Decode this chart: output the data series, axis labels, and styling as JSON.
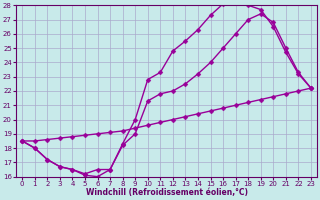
{
  "xlabel": "Windchill (Refroidissement éolien,°C)",
  "bg_color": "#c8eaea",
  "grid_color": "#aaaacc",
  "line_color": "#990099",
  "marker": "D",
  "markersize": 2.5,
  "linewidth": 1.0,
  "xlim": [
    -0.5,
    23.5
  ],
  "ylim": [
    16,
    28
  ],
  "xticks": [
    0,
    1,
    2,
    3,
    4,
    5,
    6,
    7,
    8,
    9,
    10,
    11,
    12,
    13,
    14,
    15,
    16,
    17,
    18,
    19,
    20,
    21,
    22,
    23
  ],
  "yticks": [
    16,
    17,
    18,
    19,
    20,
    21,
    22,
    23,
    24,
    25,
    26,
    27,
    28
  ],
  "curves": [
    {
      "x": [
        0,
        1,
        2,
        3,
        4,
        5,
        6,
        7,
        8,
        9,
        10,
        11,
        12,
        13,
        14,
        15,
        16,
        17,
        18,
        19,
        20,
        21,
        22,
        23
      ],
      "y": [
        18.5,
        18.0,
        17.2,
        16.7,
        16.5,
        16.1,
        16.0,
        16.5,
        18.3,
        20.0,
        22.8,
        23.3,
        24.8,
        25.5,
        26.3,
        27.3,
        28.1,
        28.2,
        28.0,
        27.7,
        26.5,
        24.7,
        23.2,
        22.2
      ]
    },
    {
      "x": [
        0,
        1,
        2,
        3,
        4,
        5,
        6,
        7,
        8,
        9,
        10,
        11,
        12,
        13,
        14,
        15,
        16,
        17,
        18,
        19,
        20,
        21,
        22,
        23
      ],
      "y": [
        18.5,
        18.0,
        17.2,
        16.7,
        16.5,
        16.2,
        16.5,
        16.5,
        18.2,
        19.0,
        21.3,
        21.8,
        22.0,
        22.5,
        23.2,
        24.0,
        25.0,
        26.0,
        27.0,
        27.4,
        26.8,
        25.0,
        23.3,
        22.2
      ]
    },
    {
      "x": [
        0,
        1,
        2,
        3,
        4,
        5,
        6,
        7,
        8,
        9,
        10,
        11,
        12,
        13,
        14,
        15,
        16,
        17,
        18,
        19,
        20,
        21,
        22,
        23
      ],
      "y": [
        18.5,
        18.5,
        18.6,
        18.7,
        18.8,
        18.9,
        19.0,
        19.1,
        19.2,
        19.4,
        19.6,
        19.8,
        20.0,
        20.2,
        20.4,
        20.6,
        20.8,
        21.0,
        21.2,
        21.4,
        21.6,
        21.8,
        22.0,
        22.2
      ]
    }
  ]
}
